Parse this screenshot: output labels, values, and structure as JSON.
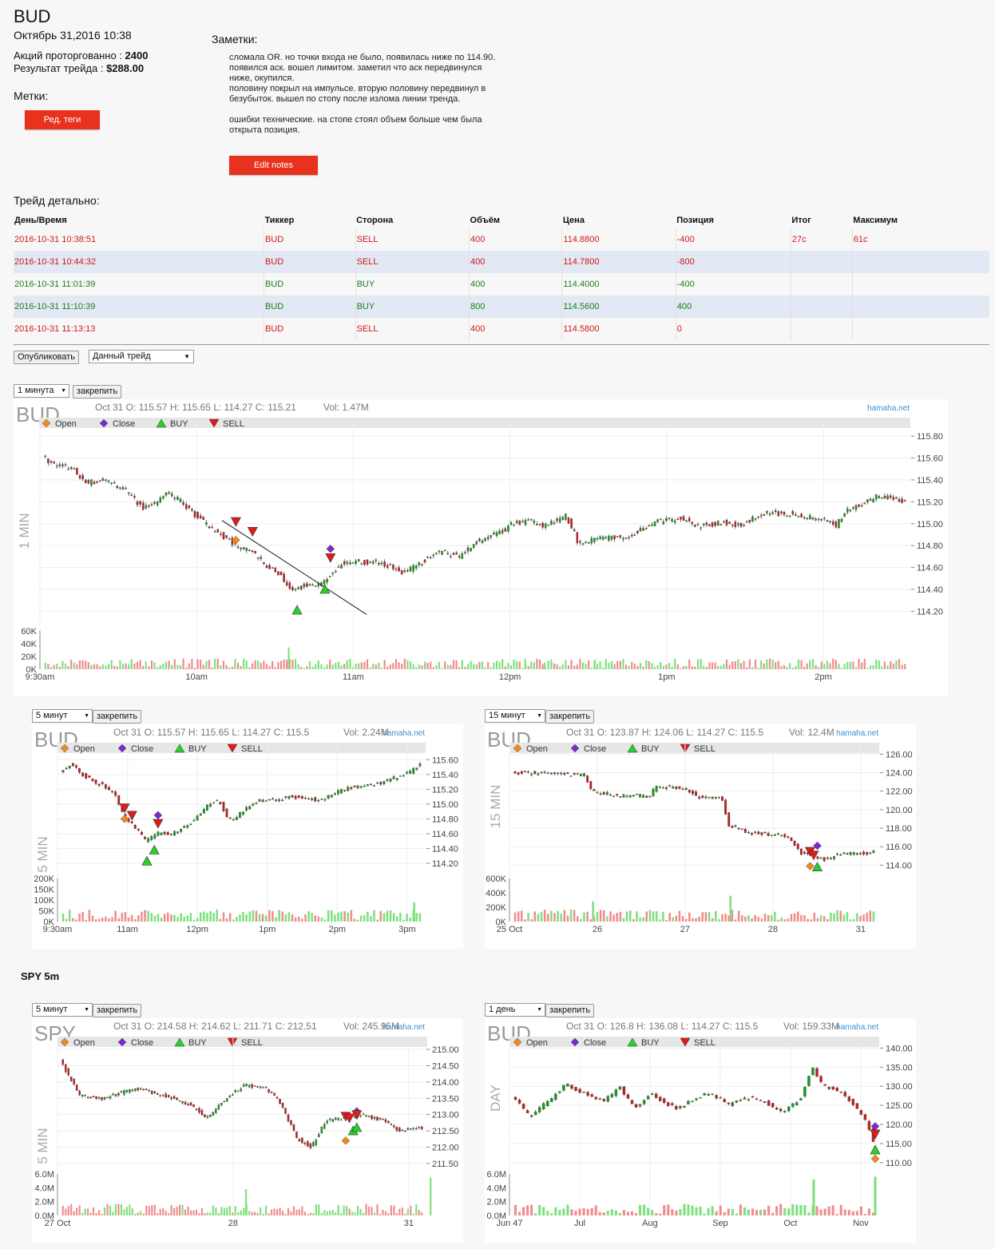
{
  "header": {
    "ticker": "BUD",
    "date": "Октябрь 31,2016 10:38",
    "shares_label": "Акций проторгованно :",
    "shares_value": "2400",
    "result_label": "Результат трейда :",
    "result_value": "$288.00",
    "tags_label": "Метки:",
    "tags_button": "Ред. теги"
  },
  "notes": {
    "label": "Заметки:",
    "text": "сломала OR. но точки входа не было, появилась ниже по 114.90. появился аск. вошел лимитом. заметил что аск передвинулся ниже, окупился.\nполовину покрыл на импульсе. вторую половину передвинул в безубыток. вышел по стопу после излома линии тренда.\n\nошибки технические. на стопе стоял объем больше чем была открыта позиция.",
    "edit_button": "Edit notes"
  },
  "trades": {
    "title": "Трейд детально:",
    "columns": [
      "День/Время",
      "Тиккер",
      "Сторона",
      "Объём",
      "Цена",
      "Позиция",
      "Итог",
      "Максимум"
    ],
    "rows": [
      [
        "2016-10-31 10:38:51",
        "BUD",
        "SELL",
        "400",
        "114.8800",
        "-400",
        "27c",
        "61c"
      ],
      [
        "2016-10-31 10:44:32",
        "BUD",
        "SELL",
        "400",
        "114.7800",
        "-800",
        "",
        ""
      ],
      [
        "2016-10-31 11:01:39",
        "BUD",
        "BUY",
        "400",
        "114.4000",
        "-400",
        "",
        ""
      ],
      [
        "2016-10-31 11:10:39",
        "BUD",
        "BUY",
        "800",
        "114.5600",
        "400",
        "",
        ""
      ],
      [
        "2016-10-31 11:13:13",
        "BUD",
        "SELL",
        "400",
        "114.5800",
        "0",
        "",
        ""
      ]
    ]
  },
  "publish": {
    "button": "Опубликовать",
    "select": "Данный трейд"
  },
  "pin_label": "закрепить",
  "legend": [
    "Open",
    "Close",
    "BUY",
    "SELL"
  ],
  "watermark": "hamaha.net",
  "spy_title": "SPY 5m",
  "colors": {
    "up": "#1a9e1a",
    "down": "#c81e1e",
    "open": "#f08a1e",
    "close": "#7a2bd0",
    "buy": "#2ad02a",
    "sell": "#e21a1a",
    "vol_up": "#7ee07e",
    "vol_down": "#f08c8c"
  },
  "chart_data": [
    {
      "type": "candlestick",
      "timeframe": "1 минута",
      "symbol": "BUD",
      "side_label": "1 MIN",
      "info": "Oct 31 O: 115.57 H: 115.65 L: 114.27 C: 115.21",
      "vol": "Vol: 1.47M",
      "y_ticks": [
        "115.80",
        "115.60",
        "115.40",
        "115.20",
        "115.00",
        "114.80",
        "114.60",
        "114.40",
        "114.20"
      ],
      "ylim": [
        114.13,
        115.83
      ],
      "vol_ticks": [
        "60K",
        "40K",
        "20K",
        "0K"
      ],
      "vol_max": 60000,
      "x_ticks": [
        "9:30am",
        "10am",
        "11am",
        "12pm",
        "1pm",
        "2pm"
      ],
      "path": [
        [
          0,
          115.62
        ],
        [
          5,
          115.52
        ],
        [
          10,
          115.52
        ],
        [
          16,
          115.37
        ],
        [
          22,
          115.4
        ],
        [
          30,
          115.3
        ],
        [
          36,
          115.15
        ],
        [
          40,
          115.17
        ],
        [
          45,
          115.28
        ],
        [
          50,
          115.2
        ],
        [
          55,
          115.08
        ],
        [
          60,
          114.97
        ],
        [
          65,
          114.88
        ],
        [
          70,
          114.8
        ],
        [
          75,
          114.74
        ],
        [
          80,
          114.62
        ],
        [
          85,
          114.55
        ],
        [
          90,
          114.38
        ],
        [
          95,
          114.45
        ],
        [
          100,
          114.43
        ],
        [
          104,
          114.55
        ],
        [
          108,
          114.65
        ],
        [
          115,
          114.65
        ],
        [
          120,
          114.65
        ],
        [
          125,
          114.62
        ],
        [
          130,
          114.55
        ],
        [
          138,
          114.68
        ],
        [
          143,
          114.74
        ],
        [
          150,
          114.7
        ],
        [
          156,
          114.84
        ],
        [
          160,
          114.88
        ],
        [
          165,
          114.93
        ],
        [
          170,
          115.01
        ],
        [
          175,
          115.02
        ],
        [
          180,
          114.98
        ],
        [
          186,
          115.04
        ],
        [
          188,
          115.07
        ],
        [
          190,
          114.98
        ],
        [
          193,
          114.8
        ],
        [
          197,
          114.85
        ],
        [
          205,
          114.88
        ],
        [
          210,
          114.88
        ],
        [
          220,
          115.01
        ],
        [
          230,
          115.05
        ],
        [
          235,
          114.98
        ],
        [
          245,
          115.01
        ],
        [
          250,
          114.98
        ],
        [
          255,
          115.05
        ],
        [
          260,
          115.1
        ],
        [
          270,
          115.09
        ],
        [
          275,
          115.06
        ],
        [
          280,
          115.05
        ],
        [
          285,
          114.98
        ],
        [
          290,
          115.14
        ],
        [
          295,
          115.17
        ],
        [
          300,
          115.25
        ],
        [
          310,
          115.21
        ]
      ],
      "markers": [
        {
          "kind": "open",
          "t": 69,
          "price": 114.85
        },
        {
          "kind": "sell",
          "t": 69,
          "price": 115.02
        },
        {
          "kind": "sell",
          "t": 75,
          "price": 114.93
        },
        {
          "kind": "buy",
          "t": 91,
          "price": 114.21
        },
        {
          "kind": "buy",
          "t": 101,
          "price": 114.4
        },
        {
          "kind": "close",
          "t": 103,
          "price": 114.77
        },
        {
          "kind": "sell",
          "t": 103,
          "price": 114.69
        }
      ],
      "trendline": [
        [
          64,
          115.03
        ],
        [
          116,
          114.17
        ]
      ],
      "volume": [
        {
          "t": 88,
          "v": 34000
        },
        {
          "t": 137,
          "v": 12000
        },
        {
          "t": 173,
          "v": 16000
        },
        {
          "t": 198,
          "v": 15000
        },
        {
          "t": 180,
          "v": 10000
        }
      ]
    },
    {
      "type": "candlestick",
      "timeframe": "5 минут",
      "symbol": "BUD",
      "side_label": "5 MIN",
      "info": "Oct 31 O: 115.57 H: 115.65 L: 114.27 C: 115.5",
      "vol": "Vol: 2.24M",
      "y_ticks": [
        "115.60",
        "115.40",
        "115.20",
        "115.00",
        "114.80",
        "114.60",
        "114.40",
        "114.20"
      ],
      "ylim": [
        114.05,
        115.7
      ],
      "vol_ticks": [
        "200K",
        "150K",
        "100K",
        "50K",
        "0K"
      ],
      "vol_max": 200000,
      "x_ticks": [
        "9:30am",
        "11am",
        "12pm",
        "1pm",
        "2pm",
        "3pm"
      ],
      "path": [
        [
          0,
          115.45
        ],
        [
          3,
          115.55
        ],
        [
          6,
          115.4
        ],
        [
          9,
          115.3
        ],
        [
          12,
          115.25
        ],
        [
          15,
          115.1
        ],
        [
          17,
          114.85
        ],
        [
          19,
          114.75
        ],
        [
          21,
          114.65
        ],
        [
          23,
          114.5
        ],
        [
          25,
          114.55
        ],
        [
          27,
          114.62
        ],
        [
          30,
          114.6
        ],
        [
          34,
          114.7
        ],
        [
          37,
          114.82
        ],
        [
          40,
          115.0
        ],
        [
          43,
          115.05
        ],
        [
          45,
          114.82
        ],
        [
          47,
          114.78
        ],
        [
          50,
          114.95
        ],
        [
          54,
          115.05
        ],
        [
          58,
          115.05
        ],
        [
          62,
          115.1
        ],
        [
          66,
          115.08
        ],
        [
          70,
          115.05
        ],
        [
          74,
          115.15
        ],
        [
          78,
          115.22
        ],
        [
          82,
          115.25
        ],
        [
          86,
          115.28
        ],
        [
          90,
          115.35
        ],
        [
          94,
          115.42
        ],
        [
          97,
          115.55
        ]
      ],
      "markers": [
        {
          "kind": "open",
          "t": 17,
          "price": 114.8
        },
        {
          "kind": "sell",
          "t": 17,
          "price": 114.95
        },
        {
          "kind": "sell",
          "t": 19,
          "price": 114.85
        },
        {
          "kind": "buy",
          "t": 23,
          "price": 114.23
        },
        {
          "kind": "buy",
          "t": 25,
          "price": 114.38
        },
        {
          "kind": "close",
          "t": 26,
          "price": 114.85
        },
        {
          "kind": "sell",
          "t": 26,
          "price": 114.74
        }
      ],
      "volume": [
        {
          "t": 95,
          "v": 90000
        }
      ]
    },
    {
      "type": "candlestick",
      "timeframe": "15 минут",
      "symbol": "BUD",
      "side_label": "15 MIN",
      "info": "Oct 31 O: 123.87 H: 124.06 L: 114.27 C: 115.5",
      "vol": "Vol: 12.4M",
      "y_ticks": [
        "126.00",
        "124.00",
        "122.00",
        "120.00",
        "118.00",
        "116.00",
        "114.00"
      ],
      "ylim": [
        113.0,
        126.2
      ],
      "vol_ticks": [
        "600K",
        "400K",
        "200K",
        "0K"
      ],
      "vol_max": 600000,
      "x_ticks": [
        "25 Oct",
        "26",
        "27",
        "28",
        "31"
      ],
      "path": [
        [
          0,
          124.0
        ],
        [
          10,
          123.9
        ],
        [
          20,
          123.8
        ],
        [
          22,
          122.0
        ],
        [
          30,
          121.5
        ],
        [
          38,
          121.5
        ],
        [
          40,
          122.5
        ],
        [
          48,
          122.3
        ],
        [
          52,
          121.3
        ],
        [
          58,
          121.3
        ],
        [
          60,
          118.3
        ],
        [
          66,
          117.5
        ],
        [
          76,
          117.2
        ],
        [
          80,
          115.3
        ],
        [
          86,
          114.6
        ],
        [
          90,
          115.1
        ],
        [
          100,
          115.4
        ]
      ],
      "markers": [
        {
          "kind": "open",
          "t": 82,
          "price": 113.9
        },
        {
          "kind": "sell",
          "t": 82,
          "price": 115.5
        },
        {
          "kind": "sell",
          "t": 83,
          "price": 115.1
        },
        {
          "kind": "buy",
          "t": 84,
          "price": 113.8
        },
        {
          "kind": "close",
          "t": 84,
          "price": 116.1
        }
      ],
      "volume": [
        {
          "t": 60,
          "v": 360000
        },
        {
          "t": 22,
          "v": 280000
        }
      ]
    },
    {
      "type": "candlestick",
      "timeframe": "5 минут",
      "symbol": "SPY",
      "side_label": "5 MIN",
      "info": "Oct 31 O: 214.58 H: 214.62 L: 211.71 C: 212.51",
      "vol": "Vol: 245.95M",
      "y_ticks": [
        "215.00",
        "214.50",
        "214.00",
        "213.50",
        "213.00",
        "212.50",
        "212.00",
        "211.50"
      ],
      "ylim": [
        211.35,
        215.1
      ],
      "vol_ticks": [
        "6.0M",
        "4.0M",
        "2.0M",
        "0.0M"
      ],
      "vol_max": 6000000,
      "x_ticks": [
        "27 Oct",
        "28",
        "31"
      ],
      "path": [
        [
          0,
          214.7
        ],
        [
          5,
          213.6
        ],
        [
          12,
          213.5
        ],
        [
          20,
          213.8
        ],
        [
          28,
          213.6
        ],
        [
          35,
          213.3
        ],
        [
          40,
          212.9
        ],
        [
          45,
          213.5
        ],
        [
          50,
          213.9
        ],
        [
          56,
          213.8
        ],
        [
          60,
          213.3
        ],
        [
          64,
          212.3
        ],
        [
          68,
          212.0
        ],
        [
          72,
          212.8
        ],
        [
          78,
          212.9
        ],
        [
          82,
          213.0
        ],
        [
          88,
          212.8
        ],
        [
          92,
          212.5
        ],
        [
          98,
          212.6
        ]
      ],
      "markers": [
        {
          "kind": "open",
          "t": 77,
          "price": 212.2
        },
        {
          "kind": "sell",
          "t": 77,
          "price": 212.95
        },
        {
          "kind": "sell",
          "t": 78,
          "price": 212.9
        },
        {
          "kind": "buy",
          "t": 79,
          "price": 212.5
        },
        {
          "kind": "buy",
          "t": 80,
          "price": 212.6
        },
        {
          "kind": "close",
          "t": 80,
          "price": 213.1
        },
        {
          "kind": "sell",
          "t": 80,
          "price": 213.0
        }
      ],
      "volume": [
        {
          "t": 100,
          "v": 5500000
        },
        {
          "t": 50,
          "v": 3800000
        }
      ]
    },
    {
      "type": "candlestick",
      "timeframe": "1 день",
      "symbol": "BUD",
      "side_label": "DAY",
      "info": "Oct 31 O: 126.8 H: 136.08 L: 114.27 C: 115.5",
      "vol": "Vol: 159.33M",
      "y_ticks": [
        "140.00",
        "135.00",
        "130.00",
        "125.00",
        "120.00",
        "115.00",
        "110.00"
      ],
      "ylim": [
        108.5,
        140.5
      ],
      "vol_ticks": [
        "6.0M",
        "4.0M",
        "2.0M",
        "0.0M"
      ],
      "vol_max": 6000000,
      "x_ticks": [
        "Jun 47",
        "Jul",
        "Aug",
        "Sep",
        "Oct",
        "Nov"
      ],
      "path": [
        [
          0,
          127.5
        ],
        [
          5,
          122.0
        ],
        [
          10,
          126.0
        ],
        [
          15,
          130.5
        ],
        [
          20,
          128.0
        ],
        [
          25,
          126.0
        ],
        [
          30,
          129.5
        ],
        [
          34,
          124.0
        ],
        [
          38,
          128.0
        ],
        [
          42,
          126.0
        ],
        [
          46,
          124.0
        ],
        [
          50,
          126.5
        ],
        [
          55,
          128.5
        ],
        [
          60,
          125.0
        ],
        [
          65,
          127.0
        ],
        [
          70,
          126.0
        ],
        [
          75,
          123.0
        ],
        [
          80,
          127.0
        ],
        [
          83,
          135.0
        ],
        [
          86,
          130.0
        ],
        [
          90,
          129.0
        ],
        [
          94,
          126.0
        ],
        [
          98,
          121.0
        ],
        [
          100,
          115.5
        ]
      ],
      "markers": [
        {
          "kind": "close",
          "t": 100,
          "price": 119.5
        },
        {
          "kind": "sell",
          "t": 100,
          "price": 117.5
        },
        {
          "kind": "buy",
          "t": 100,
          "price": 113.3
        },
        {
          "kind": "open",
          "t": 100,
          "price": 111.0
        }
      ],
      "volume": [
        {
          "t": 100,
          "v": 5600000
        },
        {
          "t": 83,
          "v": 5200000
        }
      ]
    }
  ]
}
